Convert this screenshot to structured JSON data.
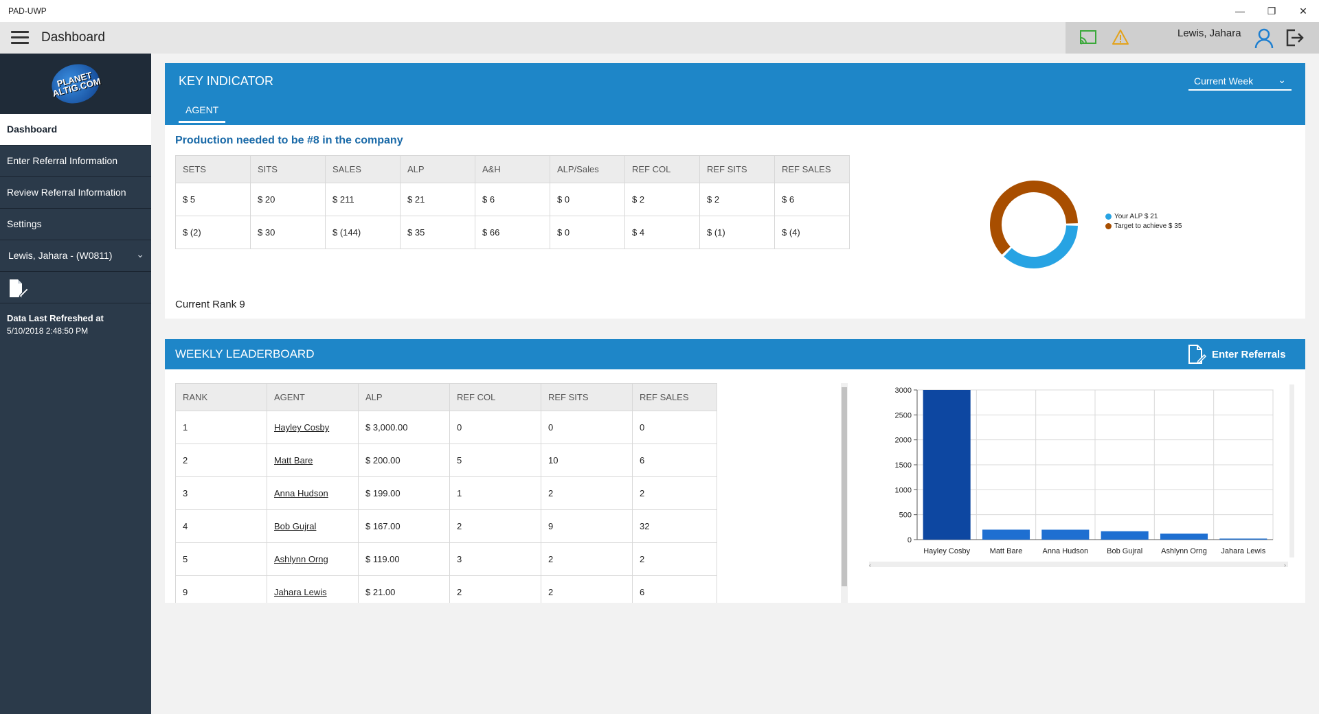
{
  "window": {
    "app_title": "PAD-UWP"
  },
  "header": {
    "page_title": "Dashboard",
    "user_name": "Lewis, Jahara"
  },
  "sidebar": {
    "items": [
      {
        "label": "Dashboard",
        "active": true
      },
      {
        "label": "Enter Referral Information",
        "active": false
      },
      {
        "label": "Review Referral Information",
        "active": false
      },
      {
        "label": "Settings",
        "active": false
      }
    ],
    "user_select": "Lewis, Jahara - (W0811)",
    "refresh_label": "Data Last Refreshed at",
    "refresh_time": "5/10/2018 2:48:50 PM",
    "logo_text": "PLANET ALTIG.COM"
  },
  "key_indicator": {
    "title": "KEY INDICATOR",
    "tab": "AGENT",
    "period": "Current Week",
    "production_title": "Production needed to be #8 in the company",
    "columns": [
      "SETS",
      "SITS",
      "SALES",
      "ALP",
      "A&H",
      "ALP/Sales",
      "REF COL",
      "REF SITS",
      "REF SALES"
    ],
    "rows": [
      [
        "$ 5",
        "$ 20",
        "$ 211",
        "$ 21",
        "$ 6",
        "$ 0",
        "$ 2",
        "$ 2",
        "$ 6"
      ],
      [
        "$ (2)",
        "$ 30",
        "$ (144)",
        "$ 35",
        "$ 66",
        "$ 0",
        "$ 4",
        "$ (1)",
        "$ (4)"
      ]
    ],
    "current_rank": "Current Rank 9"
  },
  "donut": {
    "legend": [
      {
        "label": "Your ALP $ 21",
        "color": "#27a3e3"
      },
      {
        "label": "Target to achieve $ 35",
        "color": "#a84e00"
      }
    ]
  },
  "leaderboard": {
    "title": "WEEKLY LEADERBOARD",
    "enter_referrals": "Enter Referrals",
    "columns": [
      "RANK",
      "AGENT",
      "ALP",
      "REF COL",
      "REF SITS",
      "REF SALES"
    ],
    "rows": [
      [
        "1",
        "Hayley Cosby",
        "$ 3,000.00",
        "0",
        "0",
        "0"
      ],
      [
        "2",
        "Matt Bare",
        "$ 200.00",
        "5",
        "10",
        "6"
      ],
      [
        "3",
        "Anna Hudson",
        "$ 199.00",
        "1",
        "2",
        "2"
      ],
      [
        "4",
        "Bob Gujral",
        "$ 167.00",
        "2",
        "9",
        "32"
      ],
      [
        "5",
        "Ashlynn Orng",
        "$ 119.00",
        "3",
        "2",
        "2"
      ],
      [
        "9",
        "Jahara Lewis",
        "$ 21.00",
        "2",
        "2",
        "6"
      ]
    ]
  },
  "chart_data": [
    {
      "type": "pie",
      "labels": [
        "Your ALP $ 21",
        "Target to achieve $ 35"
      ],
      "values": [
        21,
        35
      ],
      "colors": [
        "#27a3e3",
        "#a84e00"
      ],
      "title": ""
    },
    {
      "type": "bar",
      "categories": [
        "Hayley Cosby",
        "Matt Bare",
        "Anna Hudson",
        "Bob Gujral",
        "Ashlynn Orng",
        "Jahara Lewis"
      ],
      "values": [
        3000,
        200,
        199,
        167,
        119,
        21
      ],
      "colors": [
        "#0d47a1",
        "#1e6fd1",
        "#1e6fd1",
        "#1e6fd1",
        "#1e6fd1",
        "#1e6fd1"
      ],
      "yticks": [
        0,
        500,
        1000,
        1500,
        2000,
        2500,
        3000
      ],
      "ylim": [
        0,
        3000
      ],
      "grid": true,
      "title": "",
      "xlabel": "",
      "ylabel": ""
    }
  ]
}
